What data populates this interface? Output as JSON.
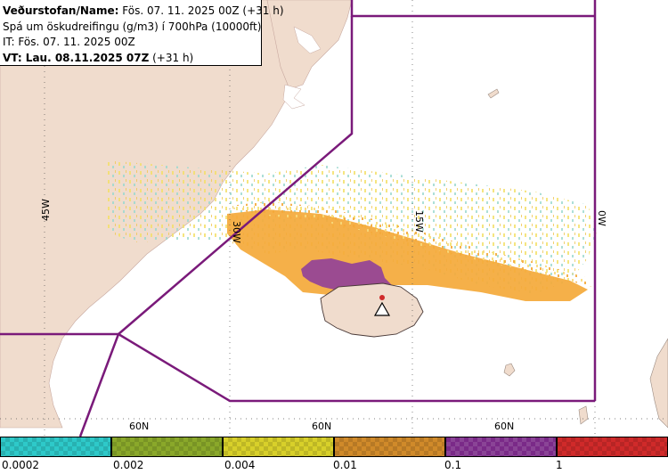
{
  "header": {
    "line1_label": "Veðurstofan/Name:",
    "line1_value": " Fös. 07. 11. 2025 00Z (+31 h)",
    "line2": "Spá um öskudreifingu (g/m3) í 700hPa (10000ft)",
    "line3": "IT: Fös. 07. 11. 2025 00Z",
    "line4_label": "VT: Lau. 08.11.2025 07Z",
    "line4_value": " (+31 h)"
  },
  "map": {
    "grid_labels": {
      "lon_45w": "45W",
      "lon_30w": "30W",
      "lon_15w": "15W",
      "lon_0": "0W",
      "lat_60n_a": "60N",
      "lat_60n_b": "60N",
      "lat_60n_c": "60N"
    },
    "colors": {
      "land": "#f0dccd",
      "sea": "#ffffff",
      "boundary": "#7a1a7a",
      "ash_low": "#f7e88a",
      "ash_mid": "#f4a93a",
      "ash_high": "#8b3a9e"
    }
  },
  "legend": {
    "ticks": [
      "0.0002",
      "0.002",
      "0.004",
      "0.01",
      "0.1",
      "1"
    ],
    "colors": [
      "#2ec9c9",
      "#8aa82a",
      "#d8d02a",
      "#d08a2a",
      "#7a2a88",
      "#d02a2a"
    ]
  }
}
